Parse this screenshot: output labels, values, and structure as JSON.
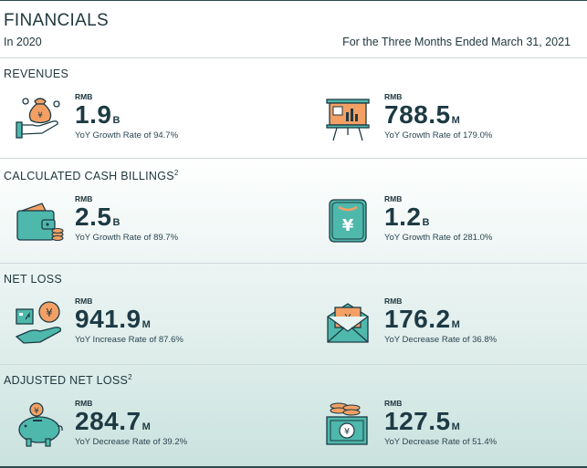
{
  "header": {
    "title": "FINANCIALS",
    "period_left": "In 2020",
    "period_right": "For the Three Months Ended March 31, 2021"
  },
  "sections": [
    {
      "title": "REVENUES",
      "footnote": "",
      "left": {
        "currency": "RMB",
        "value": "1.9",
        "unit": "B",
        "rate": "YoY Growth Rate of 94.7%",
        "icon": "money-bag-hand-icon"
      },
      "right": {
        "currency": "RMB",
        "value": "788.5",
        "unit": "M",
        "rate": "YoY Growth Rate of 179.0%",
        "icon": "presentation-board-icon"
      }
    },
    {
      "title": "CALCULATED CASH BILLINGS",
      "footnote": "2",
      "left": {
        "currency": "RMB",
        "value": "2.5",
        "unit": "B",
        "rate": "YoY Growth Rate of 89.7%",
        "icon": "wallet-icon"
      },
      "right": {
        "currency": "RMB",
        "value": "1.2",
        "unit": "B",
        "rate": "YoY Growth Rate of 281.0%",
        "icon": "yen-card-icon"
      }
    },
    {
      "title": "NET LOSS",
      "footnote": "",
      "left": {
        "currency": "RMB",
        "value": "941.9",
        "unit": "M",
        "rate": "YoY Increase Rate of 87.6%",
        "icon": "yen-coin-hand-icon"
      },
      "right": {
        "currency": "RMB",
        "value": "176.2",
        "unit": "M",
        "rate": "YoY Decrease Rate of 36.8%",
        "icon": "yen-envelope-icon"
      }
    },
    {
      "title": "ADJUSTED NET LOSS",
      "footnote": "2",
      "left": {
        "currency": "RMB",
        "value": "284.7",
        "unit": "M",
        "rate": "YoY Decrease Rate of 39.2%",
        "icon": "piggy-bank-icon"
      },
      "right": {
        "currency": "RMB",
        "value": "127.5",
        "unit": "M",
        "rate": "YoY Decrease Rate of 51.4%",
        "icon": "yen-banknote-coins-icon"
      }
    }
  ],
  "colors": {
    "dark": "#1d3a44",
    "teal": "#4fb8ac",
    "orange": "#f4a064",
    "line": "#cfd9d9"
  }
}
